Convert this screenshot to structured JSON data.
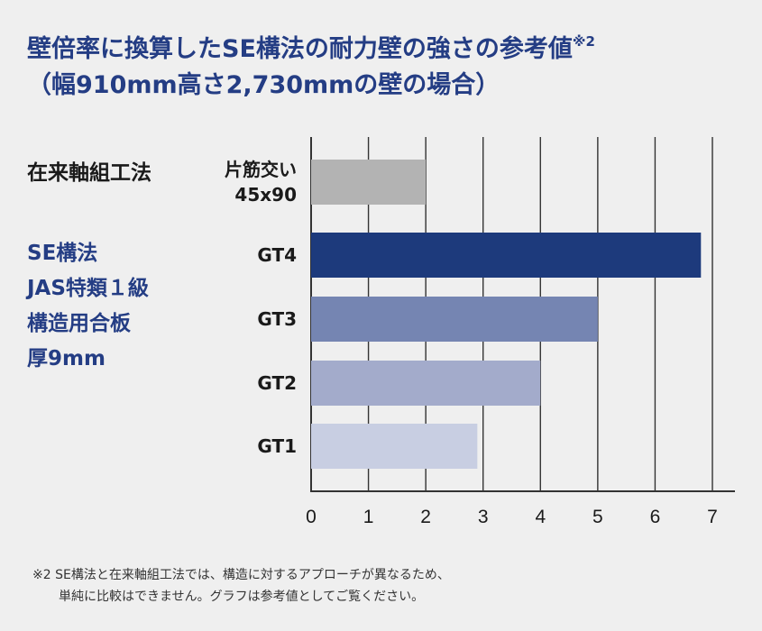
{
  "title": {
    "line1": "壁倍率に換算したSE構法の耐力壁の強さの参考値",
    "line1_note": "※2",
    "line2": "（幅910mm高さ2,730mmの壁の場合）"
  },
  "group_labels": {
    "conventional": "在来軸組工法",
    "se": [
      "SE構法",
      "JAS特類１級",
      "構造用合板",
      "厚9mm"
    ]
  },
  "footnote": {
    "line1": "※2 SE構法と在来軸組工法では、構造に対するアプローチが異なるため、",
    "line2": "単純に比較はできません。グラフは参考値としてご覧ください。"
  },
  "colors": {
    "title": "#243d84",
    "grid": "#333333"
  },
  "chart_data": {
    "type": "bar",
    "orientation": "horizontal",
    "categories": [
      [
        "片筋交い",
        "45x90"
      ],
      [
        "GT4"
      ],
      [
        "GT3"
      ],
      [
        "GT2"
      ],
      [
        "GT1"
      ]
    ],
    "values": [
      2.0,
      6.8,
      5.0,
      4.0,
      2.9
    ],
    "bar_colors": [
      "#b3b3b3",
      "#1d3a7c",
      "#7585b2",
      "#a3abcb",
      "#c8cee2"
    ],
    "xlim": [
      0,
      7
    ],
    "xticks": [
      "0",
      "1",
      "2",
      "3",
      "4",
      "5",
      "6",
      "7"
    ],
    "grid": true,
    "xlabel": "",
    "ylabel": ""
  }
}
